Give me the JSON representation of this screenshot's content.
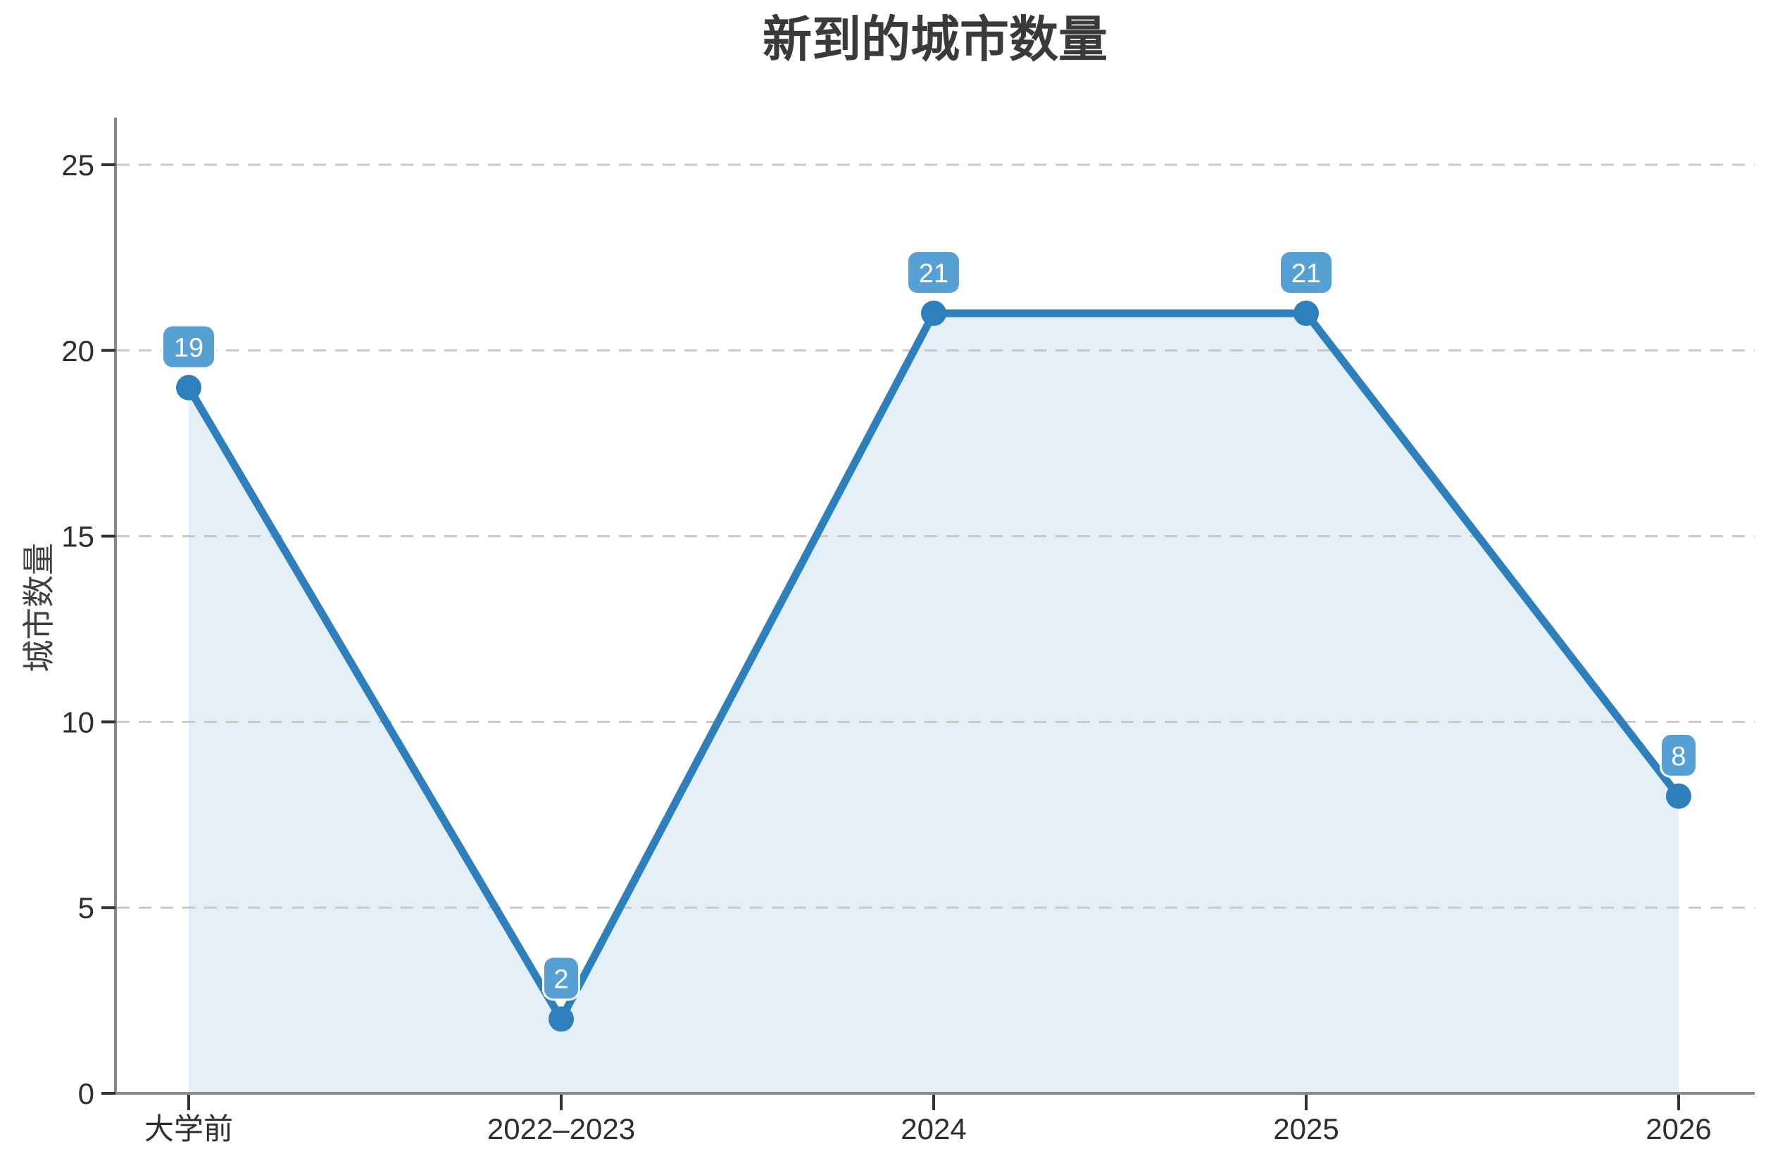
{
  "page": {
    "background": "#ffffff"
  },
  "chart_data": {
    "type": "line",
    "title": "新到的城市数量",
    "xlabel": "",
    "ylabel": "城市数量",
    "categories": [
      "大学前",
      "2022–2023",
      "2024",
      "2025",
      "2026"
    ],
    "series": [
      {
        "name": "城市数量",
        "values": [
          19,
          2,
          21,
          21,
          8
        ]
      }
    ],
    "data_labels": [
      "19",
      "2",
      "21",
      "21",
      "8"
    ],
    "y_ticks": [
      0,
      5,
      10,
      15,
      20,
      25
    ],
    "ylim": [
      0,
      26.3
    ],
    "grid": "horizontal-dashed",
    "legend_position": "none",
    "marker": "circle",
    "area_filled": true,
    "colors": {
      "line": "#2e80bc",
      "marker": "#2e80bc",
      "area_fill": "#e4eff8",
      "badge_fill": "#57a0d3",
      "badge_halo": "#ffffff",
      "badge_text": "#ffffff",
      "gridline": "#c8c8c8",
      "axis": "#8a8a8a",
      "tick": "#333333",
      "tick_label": "#2e2e2e",
      "title_color": "#3a3a3a"
    }
  }
}
